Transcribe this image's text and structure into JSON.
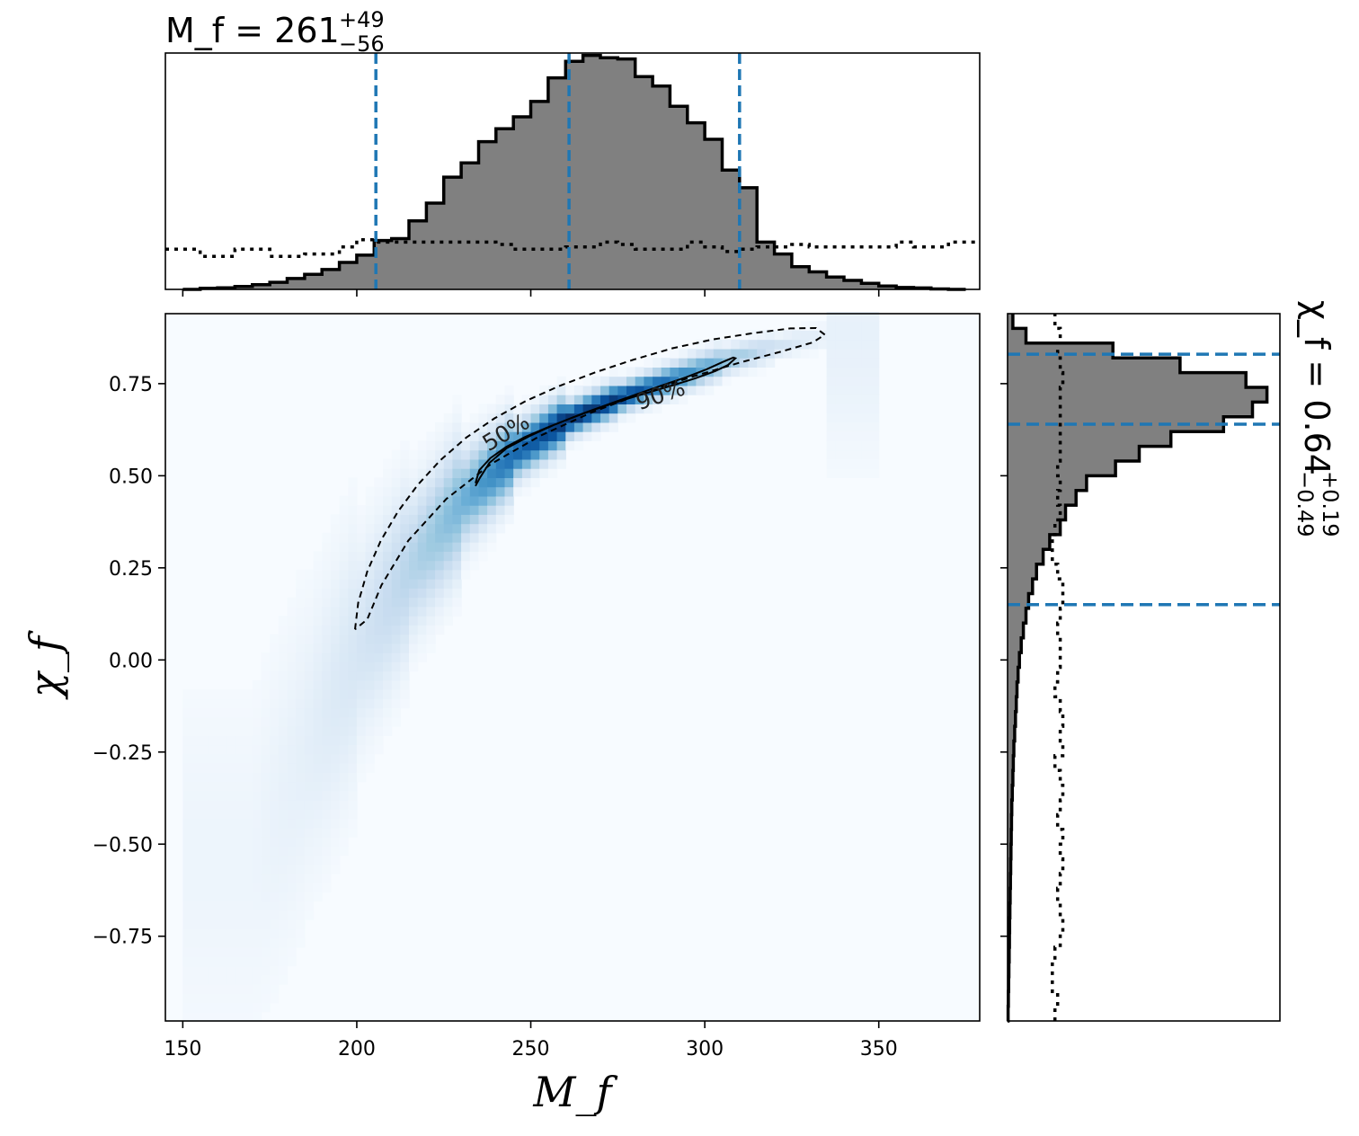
{
  "chart_data": [
    {
      "panel": "joint",
      "type": "heatmap",
      "xlabel": "M_f",
      "ylabel": "χ_f",
      "xlim": [
        145,
        379
      ],
      "ylim": [
        -0.98,
        0.94
      ],
      "xticks": [
        150,
        200,
        250,
        300,
        350
      ],
      "xtick_labels": [
        "150",
        "200",
        "250",
        "300",
        "350"
      ],
      "yticks": [
        0.75,
        0.5,
        0.25,
        0.0,
        -0.25,
        -0.5,
        -0.75
      ],
      "ytick_labels": [
        "0.75",
        "0.50",
        "0.25",
        "0.00",
        "−0.25",
        "−0.50",
        "−0.75"
      ],
      "colormap": [
        "#f7fbff",
        "#deebf7",
        "#c6dbef",
        "#9ecae1",
        "#6baed6",
        "#4292c6",
        "#2171b5",
        "#08519c",
        "#08306b"
      ],
      "density_ridge": {
        "x": [
          170,
          185,
          200,
          215,
          230,
          245,
          260,
          275,
          290,
          305,
          320,
          335
        ],
        "y": [
          -0.55,
          -0.25,
          0.03,
          0.25,
          0.43,
          0.56,
          0.65,
          0.71,
          0.76,
          0.81,
          0.85,
          0.88
        ],
        "width": [
          18,
          16,
          14,
          12,
          11,
          9,
          8.5,
          8.5,
          9,
          10,
          11,
          13
        ],
        "weight": [
          0.03,
          0.06,
          0.12,
          0.24,
          0.42,
          0.75,
          1.0,
          0.95,
          0.7,
          0.38,
          0.15,
          0.05
        ]
      },
      "contours": [
        {
          "label": "50%",
          "style": "solid",
          "x": [
            234.1,
            235.2,
            238.4,
            242.9,
            248.3,
            254.5,
            261.2,
            268.4,
            276.1,
            283.8,
            291.0,
            297.5,
            303.0,
            306.7,
            308.8,
            308.2,
            305.2,
            300.5,
            294.5,
            287.6,
            280.3,
            272.6,
            264.6,
            256.9,
            249.7,
            243.1,
            238.1,
            235.3,
            234.1
          ],
          "y": [
            0.48,
            0.515,
            0.548,
            0.578,
            0.605,
            0.63,
            0.655,
            0.68,
            0.704,
            0.726,
            0.746,
            0.765,
            0.784,
            0.801,
            0.819,
            0.821,
            0.809,
            0.789,
            0.767,
            0.745,
            0.721,
            0.695,
            0.668,
            0.639,
            0.608,
            0.575,
            0.535,
            0.493,
            0.472
          ]
        },
        {
          "label": "90%",
          "style": "dashed",
          "x": [
            199.5,
            200.4,
            203.0,
            206.9,
            211.8,
            217.5,
            224.0,
            231.4,
            239.6,
            248.6,
            258.3,
            268.6,
            279.5,
            290.7,
            302.3,
            313.8,
            324.6,
            332.0,
            334.5,
            331.0,
            322.0,
            310.0,
            296.8,
            282.3,
            267.5,
            252.8,
            238.6,
            225.7,
            214.8,
            207.1,
            203.0,
            199.5
          ],
          "y": [
            0.083,
            0.155,
            0.24,
            0.324,
            0.402,
            0.475,
            0.542,
            0.603,
            0.656,
            0.703,
            0.744,
            0.781,
            0.815,
            0.846,
            0.87,
            0.887,
            0.9,
            0.901,
            0.883,
            0.862,
            0.837,
            0.807,
            0.77,
            0.725,
            0.672,
            0.609,
            0.532,
            0.437,
            0.324,
            0.203,
            0.11,
            0.083
          ]
        }
      ],
      "contour_labels": [
        {
          "text": "50%",
          "x": 244,
          "y": 0.6,
          "angle": -31
        },
        {
          "text": "90%",
          "x": 288,
          "y": 0.7,
          "angle": -19
        }
      ]
    },
    {
      "panel": "marginal-top",
      "type": "histogram",
      "title": "M_f = 261",
      "title_sup": "+49",
      "title_sub": "−56",
      "xlim": [
        145,
        379
      ],
      "bin_edges": [
        150,
        155,
        160,
        165,
        170,
        175,
        180,
        185,
        190,
        195,
        200,
        205,
        210,
        215,
        220,
        225,
        230,
        235,
        240,
        245,
        250,
        255,
        260,
        265,
        270,
        275,
        280,
        285,
        290,
        295,
        300,
        305,
        310,
        315,
        320,
        325,
        330,
        335,
        340,
        345,
        350,
        355,
        360,
        365,
        370,
        375
      ],
      "posterior": [
        0.0,
        0.005,
        0.007,
        0.012,
        0.02,
        0.03,
        0.046,
        0.064,
        0.084,
        0.114,
        0.145,
        0.207,
        0.215,
        0.29,
        0.365,
        0.475,
        0.535,
        0.625,
        0.68,
        0.73,
        0.795,
        0.895,
        0.965,
        0.99,
        0.98,
        0.975,
        0.9,
        0.86,
        0.775,
        0.705,
        0.635,
        0.505,
        0.43,
        0.2,
        0.15,
        0.096,
        0.074,
        0.052,
        0.038,
        0.026,
        0.014,
        0.008,
        0.006,
        0.002,
        0.0
      ],
      "prior": [
        0.17,
        0.14,
        0.14,
        0.17,
        0.17,
        0.14,
        0.14,
        0.15,
        0.15,
        0.18,
        0.21,
        0.2,
        0.2,
        0.2,
        0.2,
        0.2,
        0.2,
        0.2,
        0.19,
        0.17,
        0.17,
        0.17,
        0.18,
        0.18,
        0.2,
        0.19,
        0.17,
        0.17,
        0.17,
        0.2,
        0.18,
        0.16,
        0.17,
        0.18,
        0.18,
        0.19,
        0.18,
        0.18,
        0.18,
        0.18,
        0.18,
        0.2,
        0.18,
        0.18,
        0.2
      ],
      "vlines": [
        205.5,
        261,
        310
      ]
    },
    {
      "panel": "marginal-right",
      "type": "histogram",
      "title": "χ_f = 0.64",
      "title_sup": "+0.19",
      "title_sub": "−0.49",
      "ylim": [
        -0.98,
        0.94
      ],
      "bin_edges": [
        -0.98,
        -0.94,
        -0.9,
        -0.86,
        -0.82,
        -0.78,
        -0.74,
        -0.7,
        -0.66,
        -0.62,
        -0.58,
        -0.54,
        -0.5,
        -0.46,
        -0.42,
        -0.38,
        -0.34,
        -0.3,
        -0.26,
        -0.22,
        -0.18,
        -0.14,
        -0.1,
        -0.06,
        -0.02,
        0.02,
        0.06,
        0.1,
        0.14,
        0.18,
        0.22,
        0.26,
        0.3,
        0.34,
        0.38,
        0.42,
        0.46,
        0.5,
        0.54,
        0.58,
        0.62,
        0.66,
        0.7,
        0.74,
        0.78,
        0.82,
        0.86,
        0.9,
        0.94
      ],
      "posterior": [
        0.002,
        0.003,
        0.004,
        0.005,
        0.006,
        0.007,
        0.008,
        0.009,
        0.01,
        0.011,
        0.012,
        0.013,
        0.014,
        0.015,
        0.016,
        0.018,
        0.02,
        0.022,
        0.024,
        0.027,
        0.03,
        0.033,
        0.036,
        0.04,
        0.045,
        0.052,
        0.06,
        0.07,
        0.08,
        0.095,
        0.11,
        0.135,
        0.16,
        0.2,
        0.22,
        0.26,
        0.3,
        0.41,
        0.5,
        0.62,
        0.82,
        0.93,
        0.985,
        0.905,
        0.655,
        0.4,
        0.07,
        0.02
      ],
      "prior": [
        0.18,
        0.19,
        0.17,
        0.17,
        0.18,
        0.2,
        0.21,
        0.2,
        0.19,
        0.2,
        0.21,
        0.2,
        0.21,
        0.19,
        0.2,
        0.21,
        0.2,
        0.18,
        0.21,
        0.2,
        0.21,
        0.2,
        0.18,
        0.19,
        0.2,
        0.2,
        0.19,
        0.2,
        0.21,
        0.21,
        0.19,
        0.17,
        0.17,
        0.18,
        0.2,
        0.19,
        0.2,
        0.19,
        0.2,
        0.2,
        0.2,
        0.2,
        0.2,
        0.21,
        0.2,
        0.19,
        0.2,
        0.18
      ],
      "hlines": [
        0.15,
        0.64,
        0.83
      ]
    }
  ],
  "colors": {
    "posterior_fill": "#808080",
    "posterior_edge": "#000000",
    "prior_line": "#000000",
    "credible_line": "#1f77b4",
    "contour": "#000000"
  }
}
